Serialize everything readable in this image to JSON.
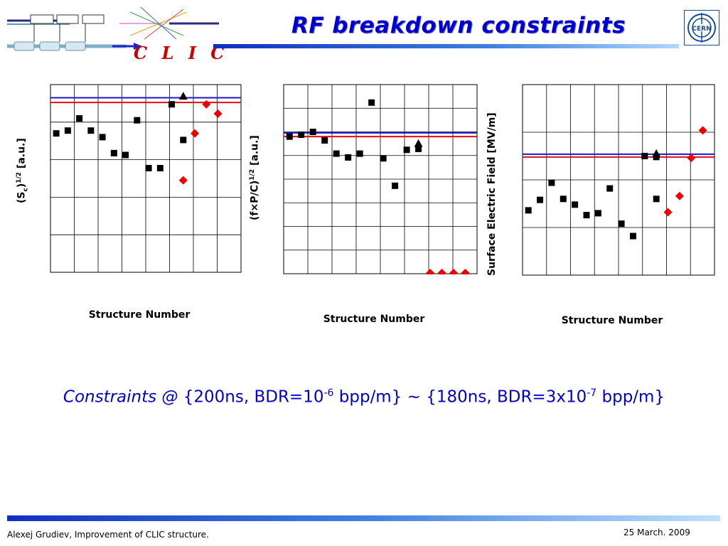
{
  "title": "RF breakdown constraints",
  "logo_text": "C L I C",
  "constraints": {
    "prefix": "Constraints @",
    "part1": "{200ns, BDR=10",
    "exp1": "-6",
    "part2": " bpp/m} ~ {180ns, BDR=3x10",
    "exp2": "-7",
    "part3": " bpp/m}"
  },
  "footer": {
    "author": "Alexej Grudiev, Improvement of CLIC structure.",
    "date": "25 March. 2009"
  },
  "colors": {
    "blue_line": "#1a1acc",
    "red_line": "#e01010",
    "marker_red": "#ee0000",
    "marker_black": "#000000",
    "title": "#0000cc"
  },
  "chart_data": [
    {
      "type": "scatter",
      "xlabel": "Structure Number",
      "ylabel_main": "(S",
      "ylabel_sub": "c",
      "ylabel_tail": ")",
      "ylabel_sup": "1/2",
      "ylabel_units": " [a.u.]",
      "grid": true,
      "ylim": [
        0,
        1
      ],
      "hlines": {
        "blue": 0.93,
        "red": 0.905
      },
      "black_squares": [
        [
          1,
          0.74
        ],
        [
          2,
          0.755
        ],
        [
          3,
          0.82
        ],
        [
          4,
          0.755
        ],
        [
          5,
          0.72
        ],
        [
          6,
          0.635
        ],
        [
          7,
          0.625
        ],
        [
          8,
          0.81
        ],
        [
          9,
          0.555
        ],
        [
          10,
          0.555
        ],
        [
          11,
          0.895
        ],
        [
          12,
          0.705
        ]
      ],
      "black_triangles": [
        [
          12,
          0.935
        ]
      ],
      "red_diamonds": [
        [
          13,
          0.74
        ],
        [
          14,
          0.895
        ],
        [
          15,
          0.845
        ],
        [
          12,
          0.49
        ]
      ]
    },
    {
      "type": "scatter",
      "xlabel": "Structure Number",
      "ylabel_main": "(f×P/C)",
      "ylabel_sup": "1/2",
      "ylabel_units": " [a.u.]",
      "grid": true,
      "ylim": [
        0,
        1
      ],
      "hlines": {
        "blue": 0.745,
        "red": 0.725
      },
      "black_squares": [
        [
          1,
          0.725
        ],
        [
          2,
          0.735
        ],
        [
          3,
          0.75
        ],
        [
          4,
          0.705
        ],
        [
          5,
          0.635
        ],
        [
          6,
          0.615
        ],
        [
          7,
          0.635
        ],
        [
          8,
          0.905
        ],
        [
          9,
          0.61
        ],
        [
          10,
          0.465
        ],
        [
          11,
          0.655
        ],
        [
          12,
          0.66
        ]
      ],
      "black_triangles": [
        [
          12,
          0.685
        ]
      ],
      "red_diamonds": [
        [
          13,
          0.0
        ],
        [
          14,
          0.0
        ],
        [
          15,
          0.0
        ],
        [
          16,
          0.0
        ]
      ]
    },
    {
      "type": "scatter",
      "xlabel": "Structure Number",
      "ylabel_main": "Surface Electric Field [MV/m]",
      "grid": true,
      "ylim": [
        0,
        1
      ],
      "hlines": {
        "blue": 0.635,
        "red": 0.62
      },
      "black_squares": [
        [
          1,
          0.34
        ],
        [
          2,
          0.395
        ],
        [
          3,
          0.485
        ],
        [
          4,
          0.4
        ],
        [
          5,
          0.37
        ],
        [
          6,
          0.315
        ],
        [
          7,
          0.325
        ],
        [
          8,
          0.455
        ],
        [
          9,
          0.27
        ],
        [
          10,
          0.205
        ],
        [
          11,
          0.625
        ],
        [
          12,
          0.4
        ],
        [
          12,
          0.62
        ]
      ],
      "black_triangles": [
        [
          12,
          0.635
        ]
      ],
      "red_diamonds": [
        [
          13,
          0.33
        ],
        [
          14,
          0.415
        ],
        [
          15,
          0.615
        ],
        [
          16,
          0.76
        ]
      ]
    }
  ]
}
